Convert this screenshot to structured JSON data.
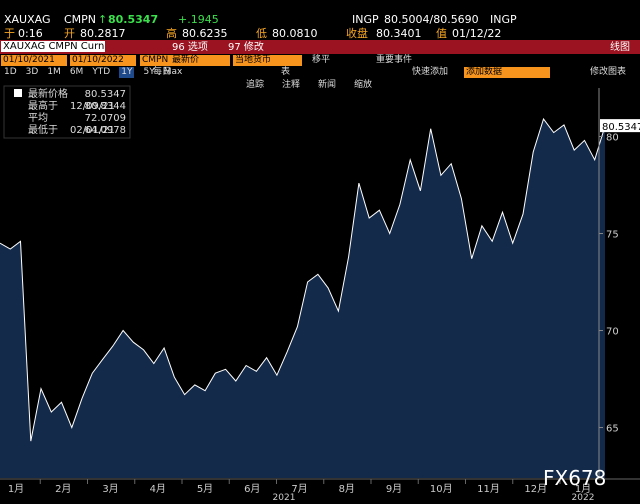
{
  "header": {
    "ticker": "XAUXAG",
    "source": "CMPN",
    "arrow": "↑",
    "last": "80.5347",
    "change": "+.1945",
    "bid_source": "INGP",
    "bid_ask": "80.5004/80.5690",
    "ask_source": "INGP",
    "time_label": "于",
    "time": "0:16",
    "open_label": "开",
    "open": "80.2817",
    "high_label": "高",
    "high": "80.6235",
    "low_label": "低",
    "low": "80.0810",
    "close_label": "收盘",
    "close": "80.3401",
    "date_label": "值",
    "date": "01/12/22"
  },
  "toolbar": {
    "security": "XAUXAG CMPN Curnc",
    "options": "96 选项",
    "edit": "97 修改",
    "view": "线图",
    "start": "01/10/2021",
    "end": "01/10/2022",
    "price_source": "CMPN",
    "field": "最新价",
    "currency": "当地货币",
    "move": "移平",
    "events": "重要事件",
    "periods": [
      "1D",
      "3D",
      "1M",
      "6M",
      "YTD",
      "1Y",
      "5Y",
      "Max"
    ],
    "frequency": "每日",
    "table": "表",
    "quick_add": "快速添加",
    "add_data": "添加数据",
    "edit_chart": "修改图表",
    "tools": [
      "追踪",
      "注释",
      "新闻",
      "缩放"
    ]
  },
  "chart_data": {
    "type": "area",
    "color": "#ffffff",
    "fill": "#132a4b",
    "legend": [
      {
        "label": "最新价格",
        "value": 80.5347
      },
      {
        "label": "最高于",
        "date": "12/09/21",
        "value": 80.8344
      },
      {
        "label": "平均",
        "value": 72.0709
      },
      {
        "label": "最低于",
        "date": "02/01/21",
        "value": 64.0978
      }
    ],
    "values": [
      74.5,
      74.2,
      74.6,
      64.3,
      67.0,
      65.8,
      66.3,
      65.0,
      66.5,
      67.8,
      68.5,
      69.2,
      70.0,
      69.4,
      69.0,
      68.3,
      69.1,
      67.6,
      66.7,
      67.2,
      66.9,
      67.8,
      68.0,
      67.4,
      68.2,
      67.9,
      68.6,
      67.7,
      68.9,
      70.2,
      72.5,
      72.9,
      72.2,
      71.0,
      73.8,
      77.6,
      75.8,
      76.2,
      75.0,
      76.5,
      78.8,
      77.2,
      80.4,
      78.0,
      78.6,
      76.8,
      73.7,
      75.4,
      74.6,
      76.1,
      74.5,
      76.0,
      79.2,
      80.9,
      80.2,
      80.6,
      79.3,
      79.8,
      78.8,
      80.5347
    ],
    "last_value": 80.5347,
    "ylim": [
      62.4,
      82.5
    ],
    "yticks": [
      65,
      70,
      75,
      80
    ],
    "x_labels": [
      "1月",
      "2月",
      "3月",
      "4月",
      "5月",
      "6月",
      "7月",
      "8月",
      "9月",
      "10月",
      "11月",
      "12月",
      "1月"
    ],
    "years": [
      "2021",
      "2022"
    ],
    "watermark": "FX678"
  }
}
